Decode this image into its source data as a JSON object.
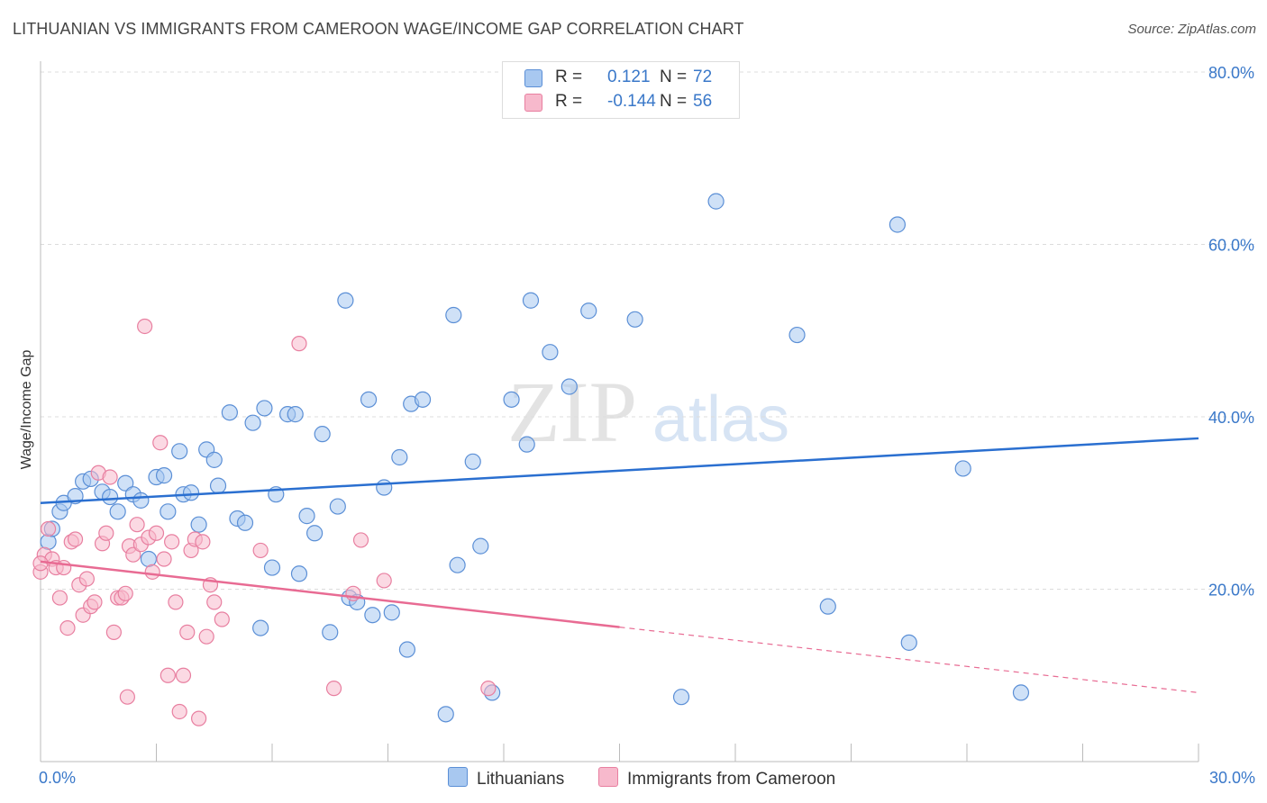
{
  "title": "LITHUANIAN VS IMMIGRANTS FROM CAMEROON WAGE/INCOME GAP CORRELATION CHART",
  "source": "Source: ZipAtlas.com",
  "watermark": {
    "zip": "ZIP",
    "atlas": "atlas"
  },
  "legend": {
    "rows": [
      {
        "r_label": "R =",
        "r_value": "0.121",
        "n_label": "N =",
        "n_value": "72",
        "color": "#a8c8f0",
        "border": "#5b8fd6"
      },
      {
        "r_label": "R =",
        "r_value": "-0.144",
        "n_label": "N =",
        "n_value": "56",
        "color": "#f7b9cc",
        "border": "#e87fa0"
      }
    ]
  },
  "bottom_legend": [
    {
      "label": "Lithuanians",
      "color": "#a8c8f0",
      "border": "#5b8fd6"
    },
    {
      "label": "Immigrants from Cameroon",
      "color": "#f7b9cc",
      "border": "#e87fa0"
    }
  ],
  "chart_data": {
    "type": "scatter",
    "title": "LITHUANIAN VS IMMIGRANTS FROM CAMEROON WAGE/INCOME GAP CORRELATION CHART",
    "xlabel": "",
    "ylabel": "Wage/Income Gap",
    "xlim": [
      0,
      30
    ],
    "ylim": [
      0,
      80
    ],
    "x_tick_labels": [
      "0.0%",
      "30.0%"
    ],
    "y_ticks": [
      20,
      40,
      60,
      80
    ],
    "y_tick_labels": [
      "20.0%",
      "40.0%",
      "60.0%",
      "80.0%"
    ],
    "grid": true,
    "legend_position": "top-center",
    "series": [
      {
        "name": "Lithuanians",
        "color": "#a8c8f0",
        "stroke": "#5b8fd6",
        "line_color": "#2a6fd0",
        "trend": {
          "x": [
            0,
            30
          ],
          "y": [
            30.0,
            37.5
          ],
          "dashed_from": null
        },
        "points": [
          [
            0.2,
            25.5
          ],
          [
            0.3,
            27.0
          ],
          [
            0.5,
            29.0
          ],
          [
            0.6,
            30.0
          ],
          [
            0.9,
            30.8
          ],
          [
            1.1,
            32.5
          ],
          [
            1.3,
            32.8
          ],
          [
            1.6,
            31.3
          ],
          [
            1.8,
            30.7
          ],
          [
            2.0,
            29.0
          ],
          [
            2.2,
            32.3
          ],
          [
            2.4,
            31.0
          ],
          [
            2.6,
            30.3
          ],
          [
            2.8,
            23.5
          ],
          [
            3.0,
            33.0
          ],
          [
            3.2,
            33.2
          ],
          [
            3.3,
            29.0
          ],
          [
            3.6,
            36.0
          ],
          [
            3.7,
            31.0
          ],
          [
            3.9,
            31.2
          ],
          [
            4.1,
            27.5
          ],
          [
            4.3,
            36.2
          ],
          [
            4.5,
            35.0
          ],
          [
            4.6,
            32.0
          ],
          [
            4.9,
            40.5
          ],
          [
            5.1,
            28.2
          ],
          [
            5.3,
            27.7
          ],
          [
            5.5,
            39.3
          ],
          [
            5.7,
            15.5
          ],
          [
            5.8,
            41.0
          ],
          [
            6.0,
            22.5
          ],
          [
            6.1,
            31.0
          ],
          [
            6.4,
            40.3
          ],
          [
            6.6,
            40.3
          ],
          [
            6.7,
            21.8
          ],
          [
            6.9,
            28.5
          ],
          [
            7.1,
            26.5
          ],
          [
            7.3,
            38.0
          ],
          [
            7.5,
            15.0
          ],
          [
            7.7,
            29.6
          ],
          [
            7.9,
            53.5
          ],
          [
            8.0,
            19.0
          ],
          [
            8.2,
            18.5
          ],
          [
            8.5,
            42.0
          ],
          [
            8.6,
            17.0
          ],
          [
            8.9,
            31.8
          ],
          [
            9.1,
            17.3
          ],
          [
            9.3,
            35.3
          ],
          [
            9.5,
            13.0
          ],
          [
            9.6,
            41.5
          ],
          [
            9.9,
            42.0
          ],
          [
            10.5,
            5.5
          ],
          [
            10.7,
            51.8
          ],
          [
            10.8,
            22.8
          ],
          [
            11.2,
            34.8
          ],
          [
            11.4,
            25.0
          ],
          [
            11.7,
            8.0
          ],
          [
            12.2,
            42.0
          ],
          [
            12.6,
            36.8
          ],
          [
            12.7,
            53.5
          ],
          [
            13.2,
            47.5
          ],
          [
            13.7,
            43.5
          ],
          [
            14.2,
            52.3
          ],
          [
            15.4,
            51.3
          ],
          [
            16.6,
            7.5
          ],
          [
            17.5,
            65.0
          ],
          [
            19.6,
            49.5
          ],
          [
            20.4,
            18.0
          ],
          [
            22.2,
            62.3
          ],
          [
            22.5,
            13.8
          ],
          [
            23.9,
            34.0
          ],
          [
            25.4,
            8.0
          ]
        ]
      },
      {
        "name": "Immigrants from Cameroon",
        "color": "#f7b9cc",
        "stroke": "#e87fa0",
        "line_color": "#e86b93",
        "trend": {
          "x": [
            0,
            30
          ],
          "y": [
            23.2,
            8.0
          ],
          "dashed_from": 15.0
        },
        "points": [
          [
            0.0,
            22.0
          ],
          [
            0.1,
            24.0
          ],
          [
            0.2,
            27.0
          ],
          [
            0.3,
            23.5
          ],
          [
            0.4,
            22.5
          ],
          [
            0.5,
            19.0
          ],
          [
            0.6,
            22.5
          ],
          [
            0.7,
            15.5
          ],
          [
            0.8,
            25.5
          ],
          [
            0.9,
            25.8
          ],
          [
            1.0,
            20.5
          ],
          [
            1.1,
            17.0
          ],
          [
            1.2,
            21.2
          ],
          [
            1.3,
            18.0
          ],
          [
            1.4,
            18.5
          ],
          [
            1.5,
            33.5
          ],
          [
            1.6,
            25.3
          ],
          [
            1.7,
            26.5
          ],
          [
            1.8,
            33.0
          ],
          [
            1.9,
            15.0
          ],
          [
            2.0,
            19.0
          ],
          [
            2.1,
            19.0
          ],
          [
            2.2,
            19.5
          ],
          [
            2.25,
            7.5
          ],
          [
            2.3,
            25.0
          ],
          [
            2.4,
            24.0
          ],
          [
            2.5,
            27.5
          ],
          [
            2.6,
            25.2
          ],
          [
            2.7,
            50.5
          ],
          [
            2.8,
            26.0
          ],
          [
            2.9,
            22.0
          ],
          [
            3.0,
            26.5
          ],
          [
            3.1,
            37.0
          ],
          [
            3.2,
            23.5
          ],
          [
            3.3,
            10.0
          ],
          [
            3.4,
            25.5
          ],
          [
            3.5,
            18.5
          ],
          [
            3.6,
            5.8
          ],
          [
            3.7,
            10.0
          ],
          [
            3.8,
            15.0
          ],
          [
            3.9,
            24.5
          ],
          [
            4.0,
            25.8
          ],
          [
            4.1,
            5.0
          ],
          [
            4.2,
            25.5
          ],
          [
            4.3,
            14.5
          ],
          [
            4.4,
            20.5
          ],
          [
            4.5,
            18.5
          ],
          [
            4.7,
            16.5
          ],
          [
            5.7,
            24.5
          ],
          [
            6.7,
            48.5
          ],
          [
            7.6,
            8.5
          ],
          [
            8.1,
            19.5
          ],
          [
            8.3,
            25.7
          ],
          [
            8.9,
            21.0
          ],
          [
            11.6,
            8.5
          ],
          [
            0.0,
            23.0
          ]
        ]
      }
    ]
  }
}
